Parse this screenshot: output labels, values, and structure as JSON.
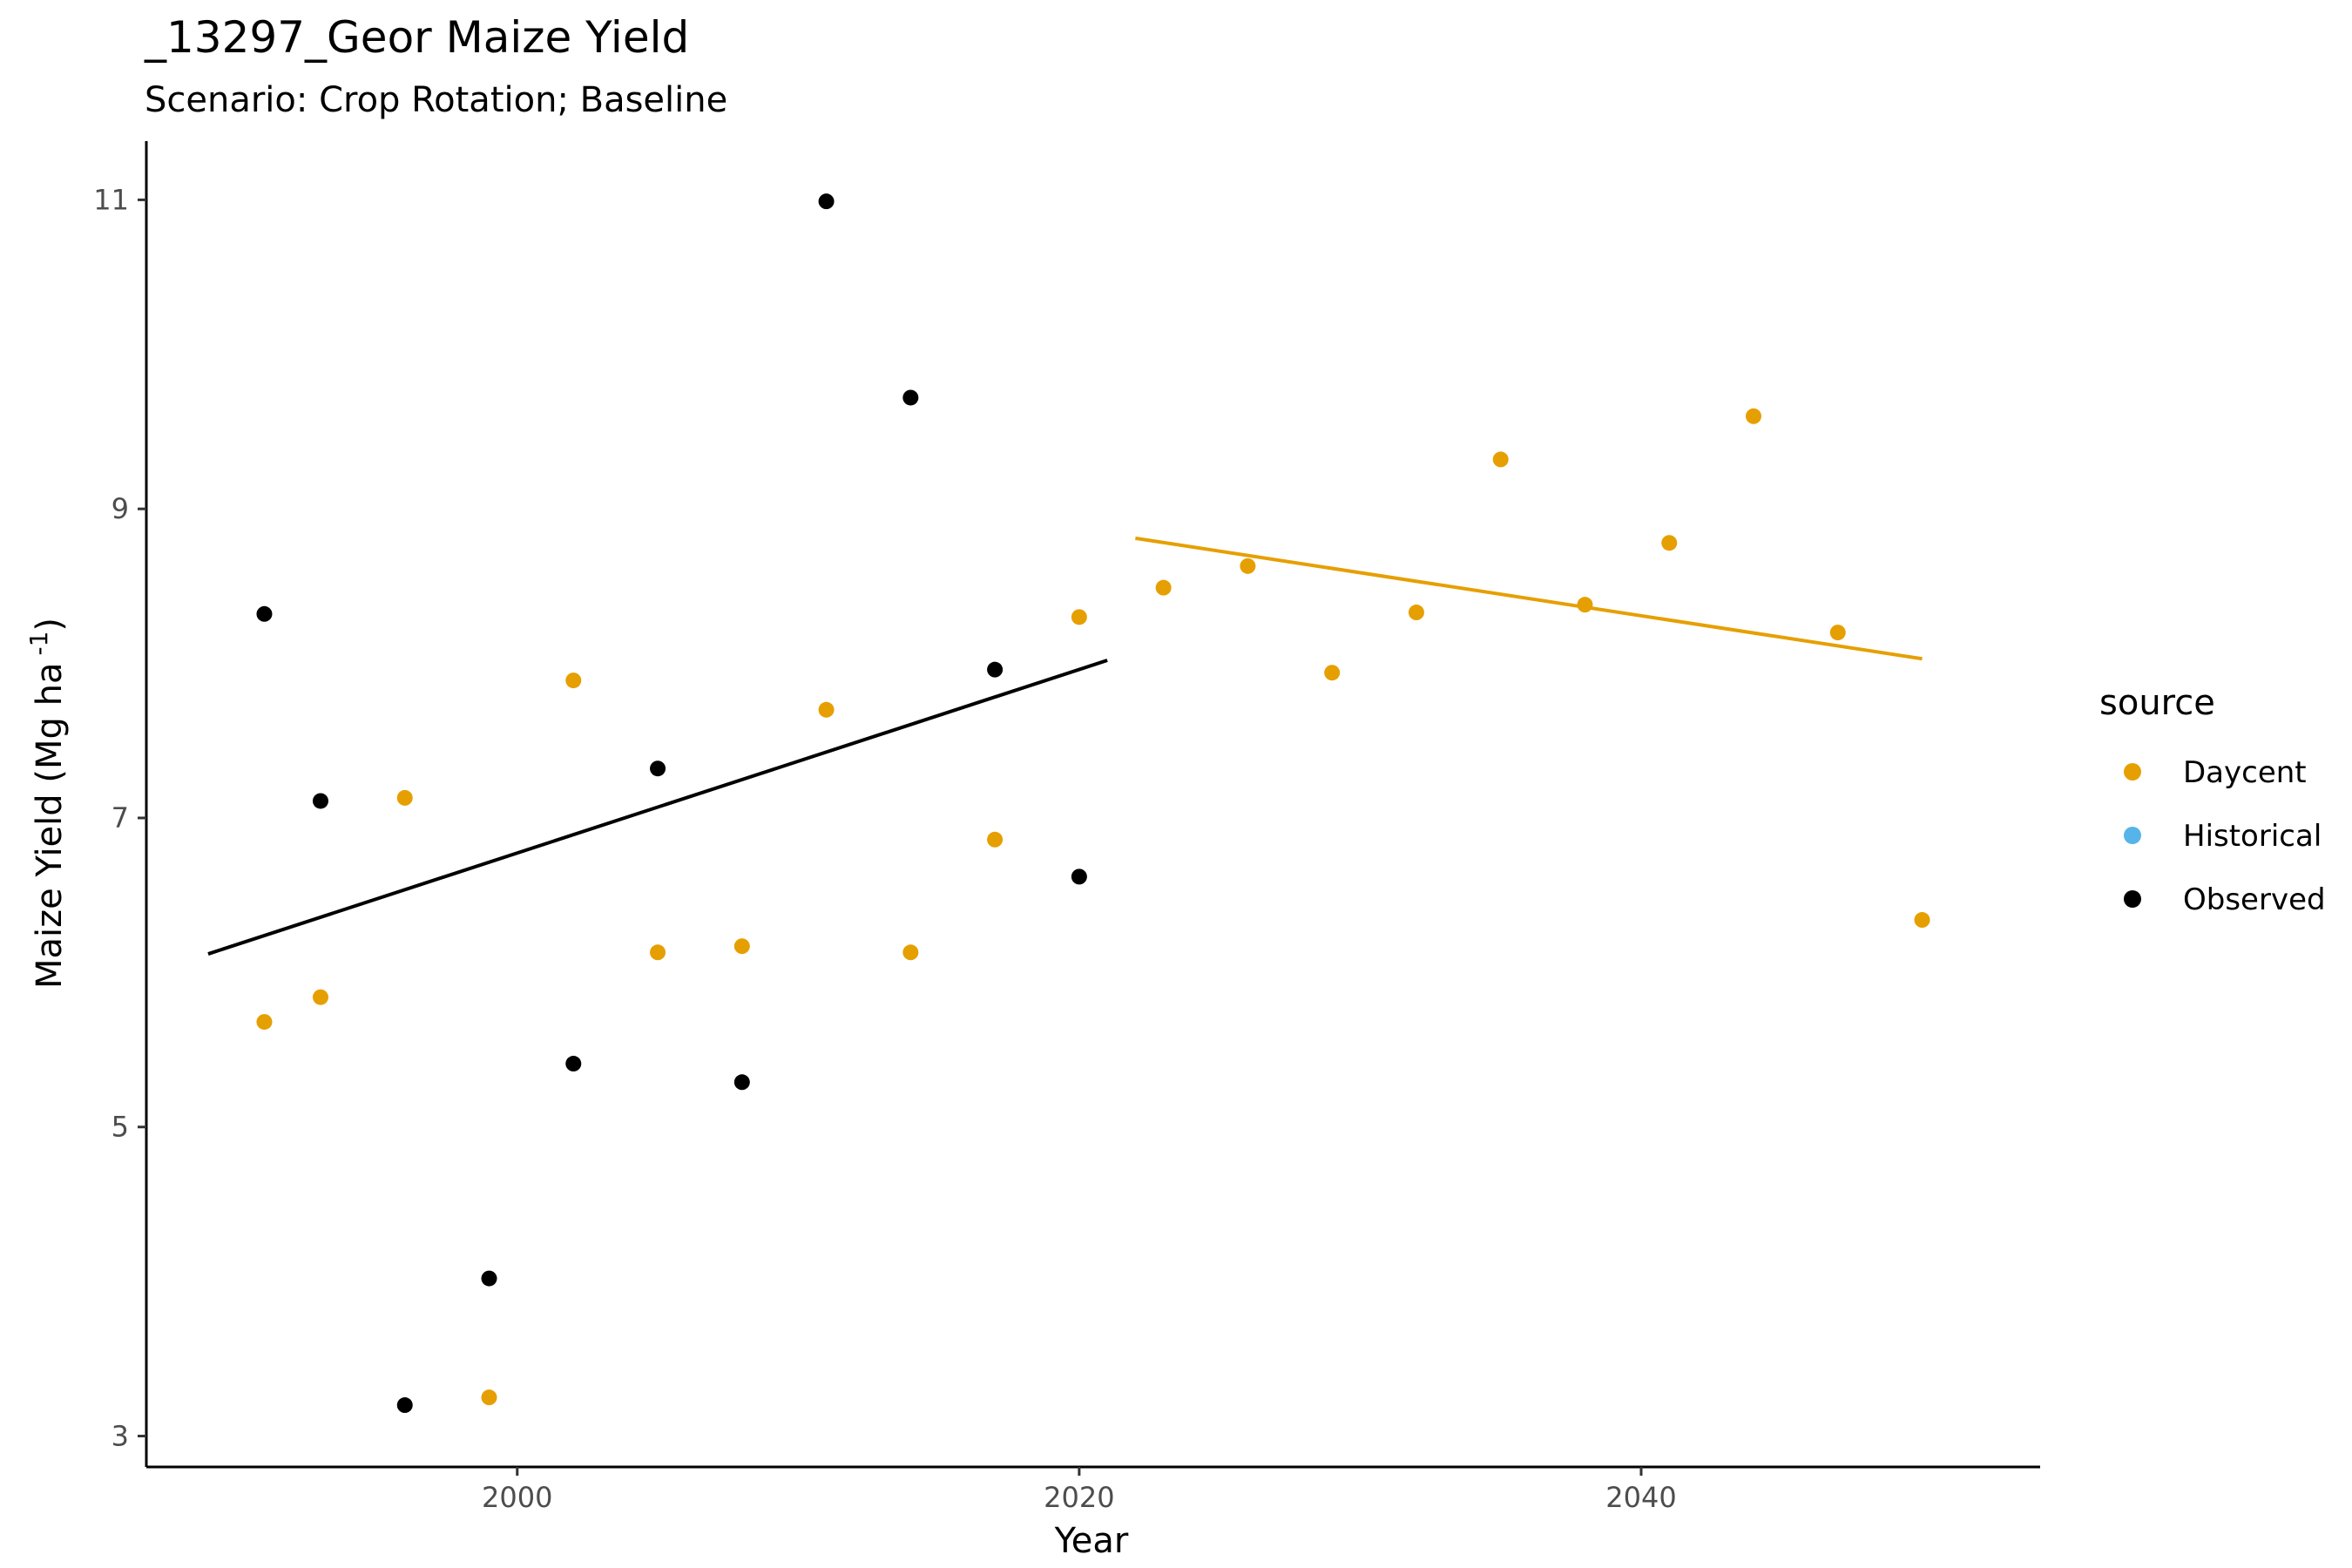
{
  "chart_data": {
    "type": "scatter",
    "title": "_13297_Geor Maize Yield",
    "subtitle": "Scenario: Crop Rotation; Baseline",
    "xlabel": "Year",
    "ylabel": "Maize Yield (Mg ha",
    "ylabel_sup": "-1",
    "ylabel_close": ")",
    "xlim": [
      1986.8,
      2054.2
    ],
    "ylim": [
      2.8,
      11.38
    ],
    "x_ticks": [
      2000,
      2020,
      2040
    ],
    "y_ticks": [
      3,
      5,
      7,
      9,
      11
    ],
    "grid": false,
    "legend": {
      "title": "source",
      "position": "right",
      "entries": [
        {
          "label": "Daycent",
          "color": "#E69F00"
        },
        {
          "label": "Historical",
          "color": "#56B4E9"
        },
        {
          "label": "Observed",
          "color": "#000000"
        }
      ]
    },
    "series": [
      {
        "name": "Daycent",
        "color": "#E69F00",
        "points": [
          [
            1991,
            5.68
          ],
          [
            1993,
            5.84
          ],
          [
            1996,
            7.13
          ],
          [
            1999,
            3.25
          ],
          [
            2002,
            7.89
          ],
          [
            2005,
            6.13
          ],
          [
            2008,
            6.17
          ],
          [
            2011,
            7.7
          ],
          [
            2014,
            6.13
          ],
          [
            2017,
            6.86
          ],
          [
            2020,
            8.3
          ],
          [
            2023,
            8.49
          ],
          [
            2026,
            8.63
          ],
          [
            2029,
            7.94
          ],
          [
            2032,
            8.33
          ],
          [
            2035,
            9.32
          ],
          [
            2038,
            8.38
          ],
          [
            2041,
            8.78
          ],
          [
            2044,
            9.6
          ],
          [
            2047,
            8.2
          ],
          [
            2050,
            6.34
          ]
        ],
        "trend": [
          [
            2022,
            8.81
          ],
          [
            2050,
            8.03
          ]
        ]
      },
      {
        "name": "Historical",
        "color": "#56B4E9",
        "points": []
      },
      {
        "name": "Observed",
        "color": "#000000",
        "points": [
          [
            1991,
            8.32
          ],
          [
            1993,
            7.11
          ],
          [
            1996,
            3.2
          ],
          [
            1999,
            4.02
          ],
          [
            2002,
            5.41
          ],
          [
            2005,
            7.32
          ],
          [
            2008,
            5.29
          ],
          [
            2011,
            10.99
          ],
          [
            2014,
            9.72
          ],
          [
            2017,
            7.96
          ],
          [
            2020,
            6.62
          ]
        ],
        "trend": [
          [
            1989,
            6.12
          ],
          [
            2021,
            8.02
          ]
        ]
      }
    ]
  }
}
